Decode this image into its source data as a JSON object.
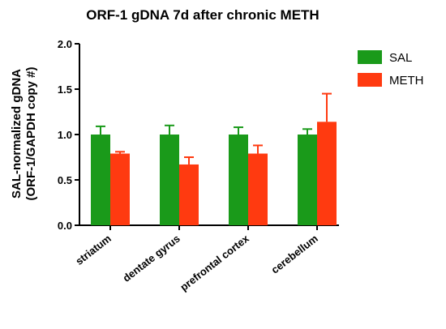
{
  "chart_data": {
    "type": "bar",
    "title": "ORF-1 gDNA 7d after chronic METH",
    "xlabel": "",
    "ylabel_line1": "SAL-normalized gDNA",
    "ylabel_line2": "(ORF-1/GAPDH copy #)",
    "ylim": [
      0,
      2.0
    ],
    "yticks": [
      "0.0",
      "0.5",
      "1.0",
      "1.5",
      "2.0"
    ],
    "ytick_values": [
      0,
      0.5,
      1.0,
      1.5,
      2.0
    ],
    "categories": [
      "striatum",
      "dentate gyrus",
      "prefrontal cortex",
      "cerebellum"
    ],
    "series": [
      {
        "name": "SAL",
        "color": "#1a9a1a",
        "values": [
          1.0,
          1.0,
          1.0,
          1.0
        ],
        "errors": [
          0.09,
          0.1,
          0.08,
          0.06
        ]
      },
      {
        "name": "METH",
        "color": "#ff3a10",
        "values": [
          0.79,
          0.67,
          0.79,
          1.14
        ],
        "errors": [
          0.02,
          0.08,
          0.09,
          0.31
        ]
      }
    ],
    "legend_position": "top-right",
    "grid": false,
    "error_bars": true
  }
}
